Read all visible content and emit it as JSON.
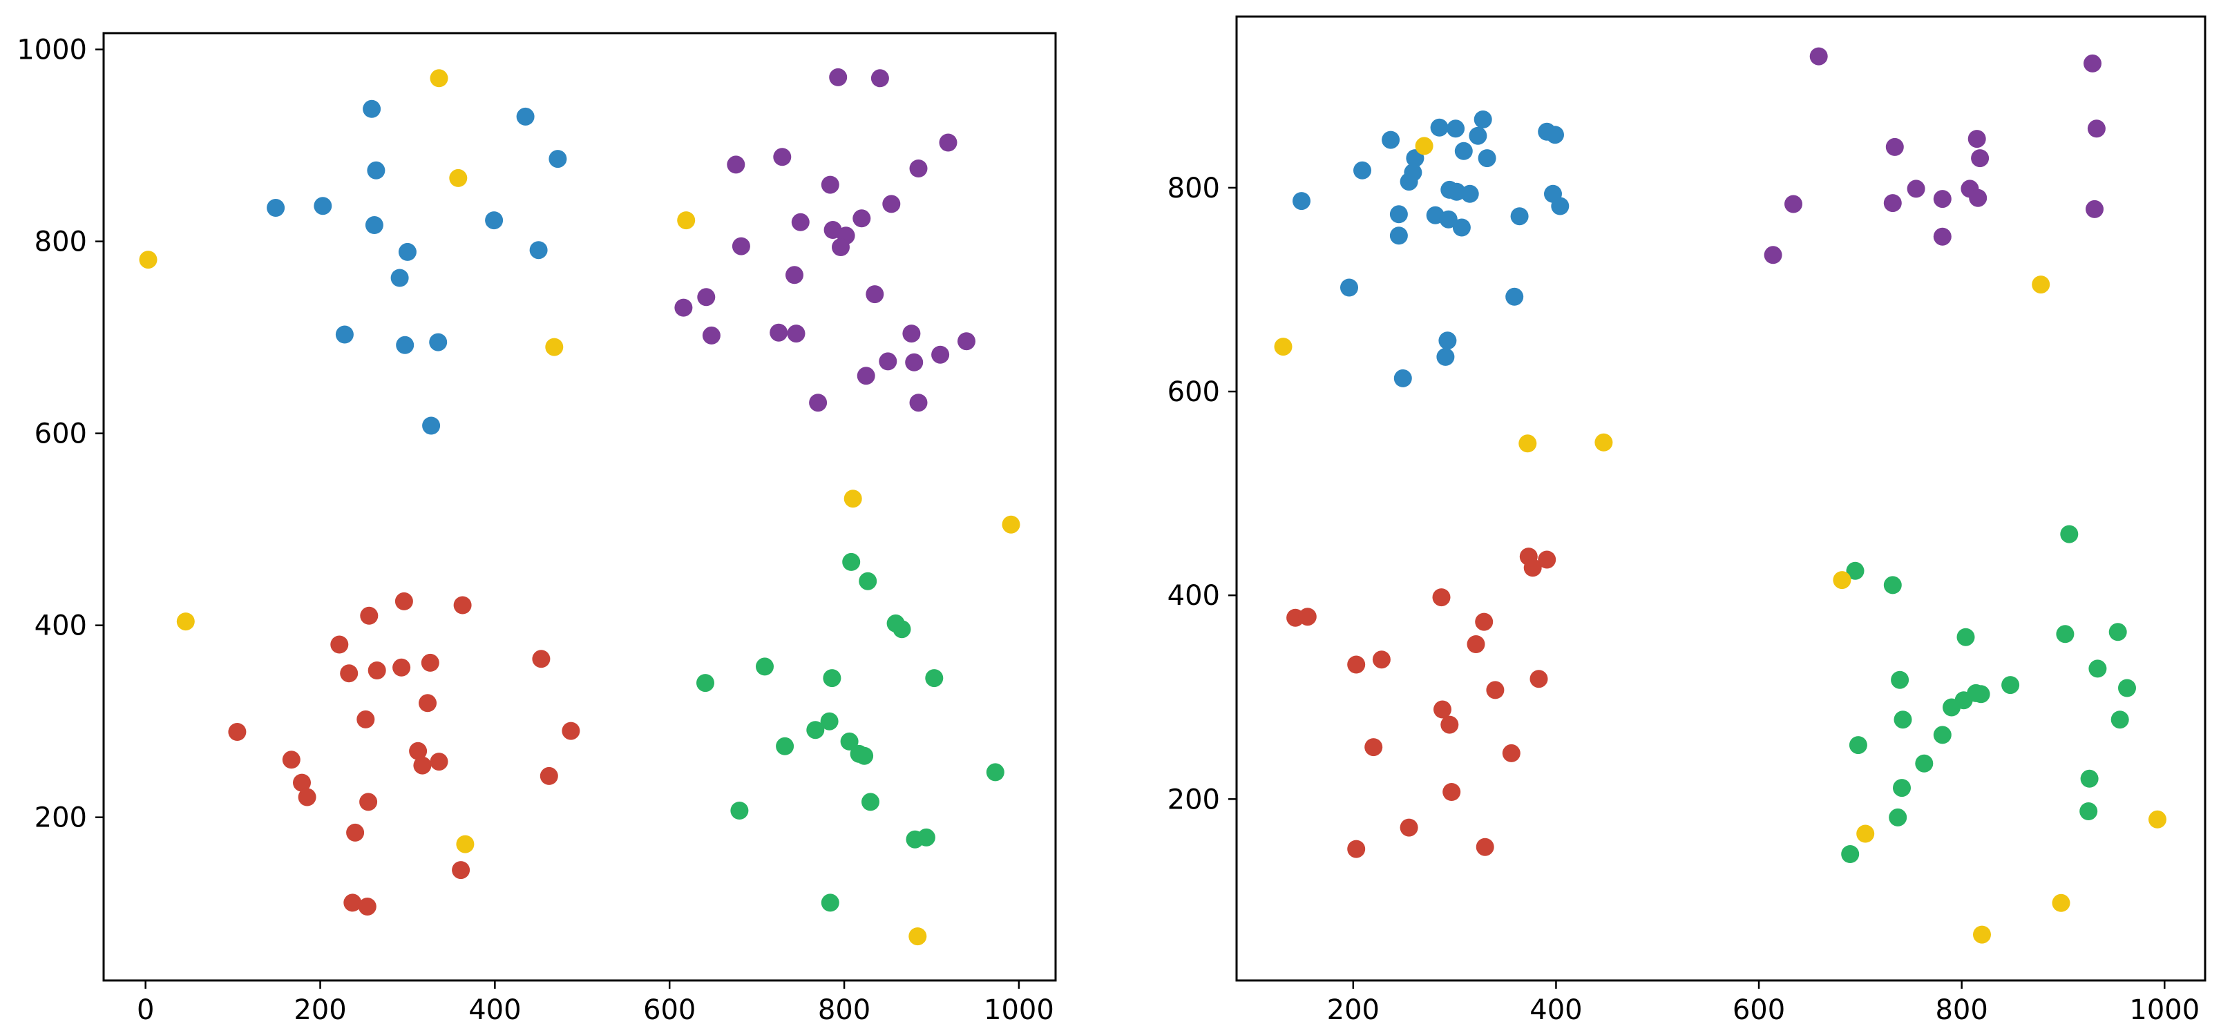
{
  "chart_data": [
    {
      "type": "scatter",
      "title": "",
      "xlabel": "",
      "ylabel": "",
      "xlim": [
        -48,
        1042
      ],
      "ylim": [
        30,
        1017
      ],
      "xticks": [
        0,
        200,
        400,
        600,
        800,
        1000
      ],
      "yticks": [
        200,
        400,
        600,
        800,
        1000
      ],
      "xtick_labels": [
        "0",
        "200",
        "400",
        "600",
        "800",
        "1000"
      ],
      "ytick_labels": [
        "200",
        "400",
        "600",
        "800",
        "1000"
      ],
      "grid": false,
      "series": [
        {
          "color": "#2e86c1",
          "points": [
            [
              149,
              835
            ],
            [
              203,
              837
            ],
            [
              259,
              938
            ],
            [
              264,
              874
            ],
            [
              262,
              817
            ],
            [
              300,
              789
            ],
            [
              291,
              762
            ],
            [
              228,
              703
            ],
            [
              297,
              692
            ],
            [
              335,
              695
            ],
            [
              327,
              608
            ],
            [
              399,
              822
            ],
            [
              435,
              930
            ],
            [
              450,
              791
            ],
            [
              472,
              886
            ]
          ]
        },
        {
          "color": "#7d3c98",
          "points": [
            [
              793,
              971
            ],
            [
              841,
              970
            ],
            [
              919,
              903
            ],
            [
              885,
              876
            ],
            [
              729,
              888
            ],
            [
              784,
              859
            ],
            [
              676,
              880
            ],
            [
              854,
              839
            ],
            [
              820,
              824
            ],
            [
              750,
              820
            ],
            [
              787,
              812
            ],
            [
              802,
              806
            ],
            [
              796,
              794
            ],
            [
              682,
              795
            ],
            [
              743,
              765
            ],
            [
              835,
              745
            ],
            [
              616,
              731
            ],
            [
              642,
              742
            ],
            [
              648,
              702
            ],
            [
              725,
              705
            ],
            [
              745,
              704
            ],
            [
              877,
              704
            ],
            [
              940,
              696
            ],
            [
              910,
              682
            ],
            [
              850,
              675
            ],
            [
              880,
              674
            ],
            [
              825,
              660
            ],
            [
              770,
              632
            ],
            [
              885,
              632
            ]
          ]
        },
        {
          "color": "#cb4335",
          "points": [
            [
              105,
              289
            ],
            [
              167,
              260
            ],
            [
              179,
              236
            ],
            [
              185,
              221
            ],
            [
              255,
              216
            ],
            [
              252,
              302
            ],
            [
              233,
              350
            ],
            [
              222,
              380
            ],
            [
              256,
              410
            ],
            [
              265,
              353
            ],
            [
              293,
              356
            ],
            [
              296,
              425
            ],
            [
              326,
              361
            ],
            [
              363,
              421
            ],
            [
              323,
              319
            ],
            [
              312,
              269
            ],
            [
              317,
              254
            ],
            [
              336,
              258
            ],
            [
              453,
              365
            ],
            [
              487,
              290
            ],
            [
              462,
              243
            ],
            [
              240,
              184
            ],
            [
              237,
              111
            ],
            [
              254,
              107
            ],
            [
              361,
              145
            ]
          ]
        },
        {
          "color": "#28b463",
          "points": [
            [
              641,
              340
            ],
            [
              680,
              207
            ],
            [
              709,
              357
            ],
            [
              732,
              274
            ],
            [
              767,
              291
            ],
            [
              783,
              300
            ],
            [
              786,
              345
            ],
            [
              808,
              466
            ],
            [
              827,
              446
            ],
            [
              859,
              402
            ],
            [
              866,
              396
            ],
            [
              903,
              345
            ],
            [
              806,
              279
            ],
            [
              817,
              266
            ],
            [
              823,
              264
            ],
            [
              830,
              216
            ],
            [
              881,
              177
            ],
            [
              894,
              179
            ],
            [
              973,
              247
            ],
            [
              784,
              111
            ]
          ]
        },
        {
          "color": "#f1c40f",
          "points": [
            [
              336,
              970
            ],
            [
              358,
              866
            ],
            [
              3,
              781
            ],
            [
              468,
              690
            ],
            [
              619,
              822
            ],
            [
              46,
              404
            ],
            [
              810,
              532
            ],
            [
              991,
              505
            ],
            [
              366,
              172
            ],
            [
              884,
              76
            ]
          ]
        }
      ]
    },
    {
      "type": "scatter",
      "title": "",
      "xlabel": "",
      "ylabel": "",
      "xlim": [
        85,
        1040
      ],
      "ylim": [
        22,
        968
      ],
      "xticks": [
        200,
        400,
        600,
        800,
        1000
      ],
      "yticks": [
        200,
        400,
        600,
        800
      ],
      "xtick_labels": [
        "200",
        "400",
        "600",
        "800",
        "1000"
      ],
      "ytick_labels": [
        "200",
        "400",
        "600",
        "800"
      ],
      "grid": false,
      "series": [
        {
          "color": "#2e86c1",
          "points": [
            [
              149,
              787
            ],
            [
              196,
              702
            ],
            [
              209,
              817
            ],
            [
              237,
              847
            ],
            [
              245,
              774
            ],
            [
              245,
              753
            ],
            [
              249,
              613
            ],
            [
              255,
              806
            ],
            [
              259,
              815
            ],
            [
              261,
              829
            ],
            [
              281,
              773
            ],
            [
              285,
              859
            ],
            [
              291,
              634
            ],
            [
              293,
              650
            ],
            [
              294,
              769
            ],
            [
              295,
              798
            ],
            [
              301,
              858
            ],
            [
              302,
              796
            ],
            [
              307,
              761
            ],
            [
              309,
              836
            ],
            [
              315,
              794
            ],
            [
              323,
              851
            ],
            [
              328,
              867
            ],
            [
              332,
              829
            ],
            [
              359,
              693
            ],
            [
              364,
              772
            ],
            [
              391,
              855
            ],
            [
              397,
              794
            ],
            [
              399,
              852
            ],
            [
              404,
              782
            ]
          ]
        },
        {
          "color": "#7d3c98",
          "points": [
            [
              614,
              734
            ],
            [
              634,
              784
            ],
            [
              659,
              929
            ],
            [
              732,
              785
            ],
            [
              734,
              840
            ],
            [
              755,
              799
            ],
            [
              781,
              789
            ],
            [
              781,
              752
            ],
            [
              808,
              799
            ],
            [
              815,
              848
            ],
            [
              816,
              790
            ],
            [
              818,
              829
            ],
            [
              929,
              922
            ],
            [
              931,
              779
            ],
            [
              933,
              858
            ]
          ]
        },
        {
          "color": "#cb4335",
          "points": [
            [
              143,
              378
            ],
            [
              155,
              379
            ],
            [
              203,
              332
            ],
            [
              203,
              151
            ],
            [
              220,
              251
            ],
            [
              228,
              337
            ],
            [
              255,
              172
            ],
            [
              287,
              398
            ],
            [
              288,
              288
            ],
            [
              295,
              273
            ],
            [
              297,
              207
            ],
            [
              321,
              352
            ],
            [
              329,
              374
            ],
            [
              330,
              153
            ],
            [
              340,
              307
            ],
            [
              356,
              245
            ],
            [
              373,
              438
            ],
            [
              377,
              427
            ],
            [
              383,
              318
            ],
            [
              391,
              435
            ]
          ]
        },
        {
          "color": "#28b463",
          "points": [
            [
              690,
              146
            ],
            [
              695,
              424
            ],
            [
              698,
              253
            ],
            [
              732,
              410
            ],
            [
              737,
              182
            ],
            [
              739,
              317
            ],
            [
              741,
              211
            ],
            [
              742,
              278
            ],
            [
              763,
              235
            ],
            [
              781,
              263
            ],
            [
              790,
              290
            ],
            [
              802,
              297
            ],
            [
              804,
              359
            ],
            [
              814,
              304
            ],
            [
              819,
              303
            ],
            [
              848,
              312
            ],
            [
              902,
              362
            ],
            [
              906,
              460
            ],
            [
              925,
              188
            ],
            [
              926,
              220
            ],
            [
              934,
              328
            ],
            [
              954,
              364
            ],
            [
              956,
              278
            ],
            [
              963,
              309
            ]
          ]
        },
        {
          "color": "#f1c40f",
          "points": [
            [
              131,
              644
            ],
            [
              270,
              841
            ],
            [
              372,
              549
            ],
            [
              447,
              550
            ],
            [
              682,
              415
            ],
            [
              705,
              166
            ],
            [
              820,
              67
            ],
            [
              878,
              705
            ],
            [
              898,
              98
            ],
            [
              993,
              180
            ]
          ]
        }
      ]
    }
  ]
}
